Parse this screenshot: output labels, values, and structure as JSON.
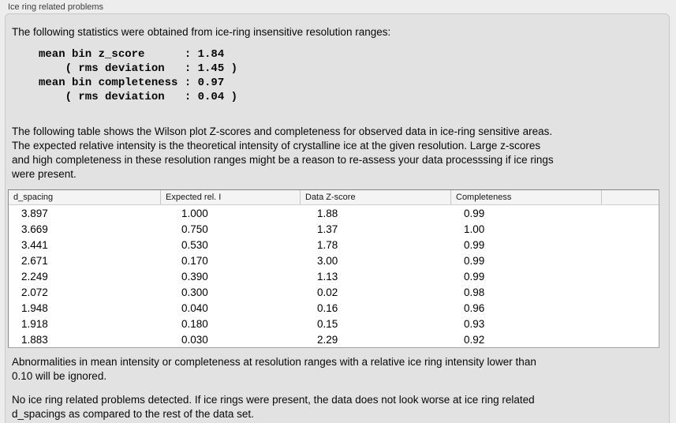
{
  "panel": {
    "title": "Ice ring related problems"
  },
  "intro": "The following statistics were obtained from ice-ring insensitive resolution ranges:",
  "stats_block": "mean bin z_score      : 1.84\n    ( rms deviation   : 1.45 )\nmean bin completeness : 0.97\n    ( rms deviation   : 0.04 )",
  "stats": {
    "mean_bin_z_score": "1.84",
    "z_score_rms_deviation": "1.45",
    "mean_bin_completeness": "0.97",
    "completeness_rms_deviation": "0.04"
  },
  "description": "The following table shows the Wilson plot Z-scores and completeness for observed data in ice-ring sensitive areas.\nThe expected relative intensity is the theoretical intensity of crystalline ice at the given resolution. Large z-scores\nand high completeness in these resolution ranges might be a reason to re-assess your data processsing if ice rings\nwere present.",
  "table": {
    "columns": [
      "d_spacing",
      "Expected rel. I",
      "Data Z-score",
      "Completeness"
    ],
    "rows": [
      [
        "3.897",
        "1.000",
        "1.88",
        "0.99"
      ],
      [
        "3.669",
        "0.750",
        "1.37",
        "1.00"
      ],
      [
        "3.441",
        "0.530",
        "1.78",
        "0.99"
      ],
      [
        "2.671",
        "0.170",
        "3.00",
        "0.99"
      ],
      [
        "2.249",
        "0.390",
        "1.13",
        "0.99"
      ],
      [
        "2.072",
        "0.300",
        "0.02",
        "0.98"
      ],
      [
        "1.948",
        "0.040",
        "0.16",
        "0.96"
      ],
      [
        "1.918",
        "0.180",
        "0.15",
        "0.93"
      ],
      [
        "1.883",
        "0.030",
        "2.29",
        "0.92"
      ]
    ]
  },
  "ignore_note": "Abnormalities in mean intensity or completeness at resolution ranges with a relative ice ring intensity lower than\n0.10 will be ignored.",
  "conclusion": "No ice ring related problems detected. If ice rings were present, the data does not look worse at ice ring related\nd_spacings as compared to the rest of the data set.",
  "colors": {
    "page_bg": "#ededed",
    "panel_bg": "#e2e2e2",
    "table_bg": "#ffffff",
    "table_header_bg": "#f4f4f4"
  }
}
